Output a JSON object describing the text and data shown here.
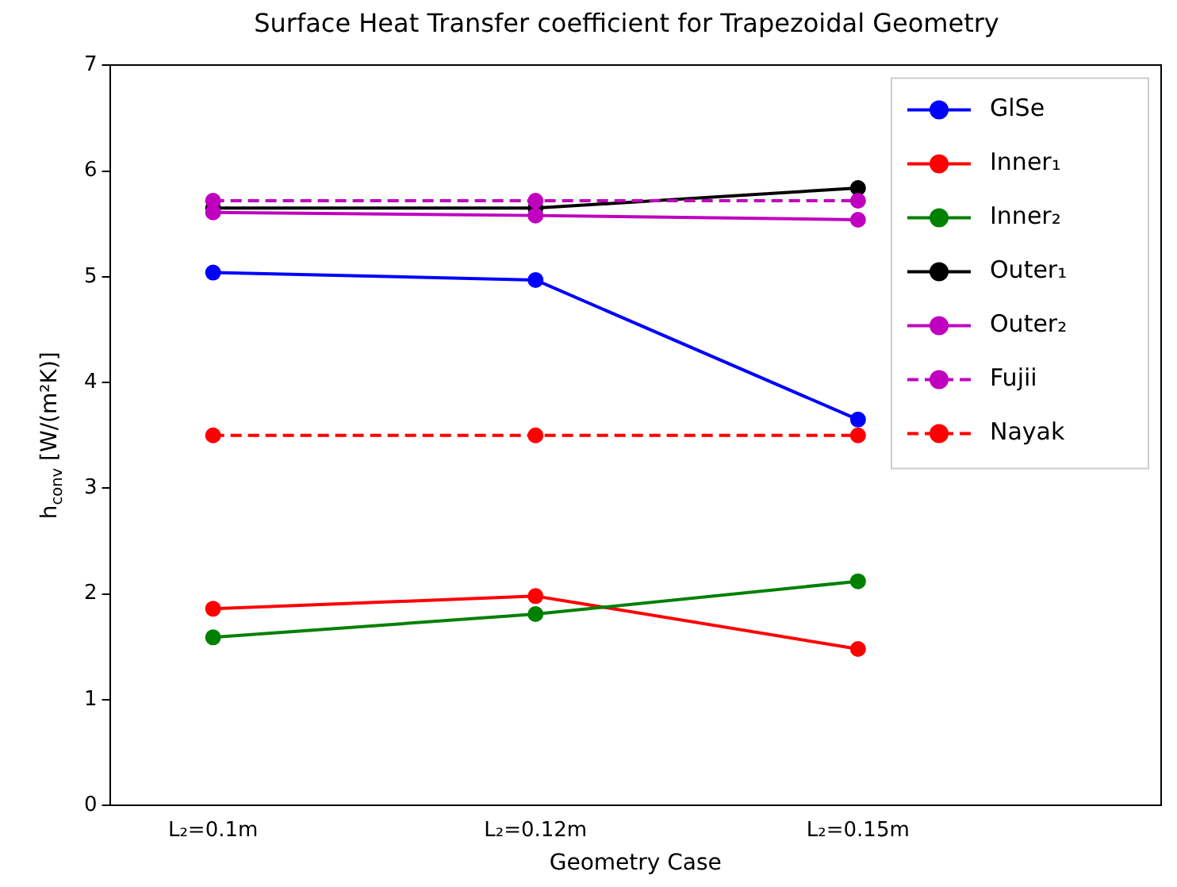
{
  "chart_data": {
    "type": "line",
    "title": "Surface Heat Transfer coefficient for Trapezoidal Geometry",
    "xlabel": "Geometry Case",
    "ylabel": "h$_{conv}$ [W/(m²K)]",
    "categories": [
      "L₂=0.1m",
      "L₂=0.12m",
      "L₂=0.15m"
    ],
    "ylim": [
      0,
      7
    ],
    "yticks": [
      0,
      1,
      2,
      3,
      4,
      5,
      6,
      7
    ],
    "grid": false,
    "legend": "top right",
    "marker": "circle",
    "series": [
      {
        "name": "GlSe",
        "color": "#0000ff",
        "values": [
          5.04,
          4.97,
          3.65
        ],
        "line_style": "solid"
      },
      {
        "name": "Inner₁",
        "color": "#ff0000",
        "values": [
          1.86,
          1.98,
          1.48
        ],
        "line_style": "solid"
      },
      {
        "name": "Inner₂",
        "color": "#008000",
        "values": [
          1.59,
          1.81,
          2.12
        ],
        "line_style": "solid"
      },
      {
        "name": "Outer₁",
        "color": "#000000",
        "values": [
          5.65,
          5.65,
          5.84
        ],
        "line_style": "solid"
      },
      {
        "name": "Outer₂",
        "color": "#bf00bf",
        "values": [
          5.61,
          5.58,
          5.54
        ],
        "line_style": "solid"
      },
      {
        "name": "Fujii",
        "color": "#bf00bf",
        "values": [
          5.72,
          5.72,
          5.72
        ],
        "line_style": "dashed"
      },
      {
        "name": "Nayak",
        "color": "#ff0000",
        "values": [
          3.5,
          3.5,
          3.5
        ],
        "line_style": "dashed"
      }
    ]
  }
}
